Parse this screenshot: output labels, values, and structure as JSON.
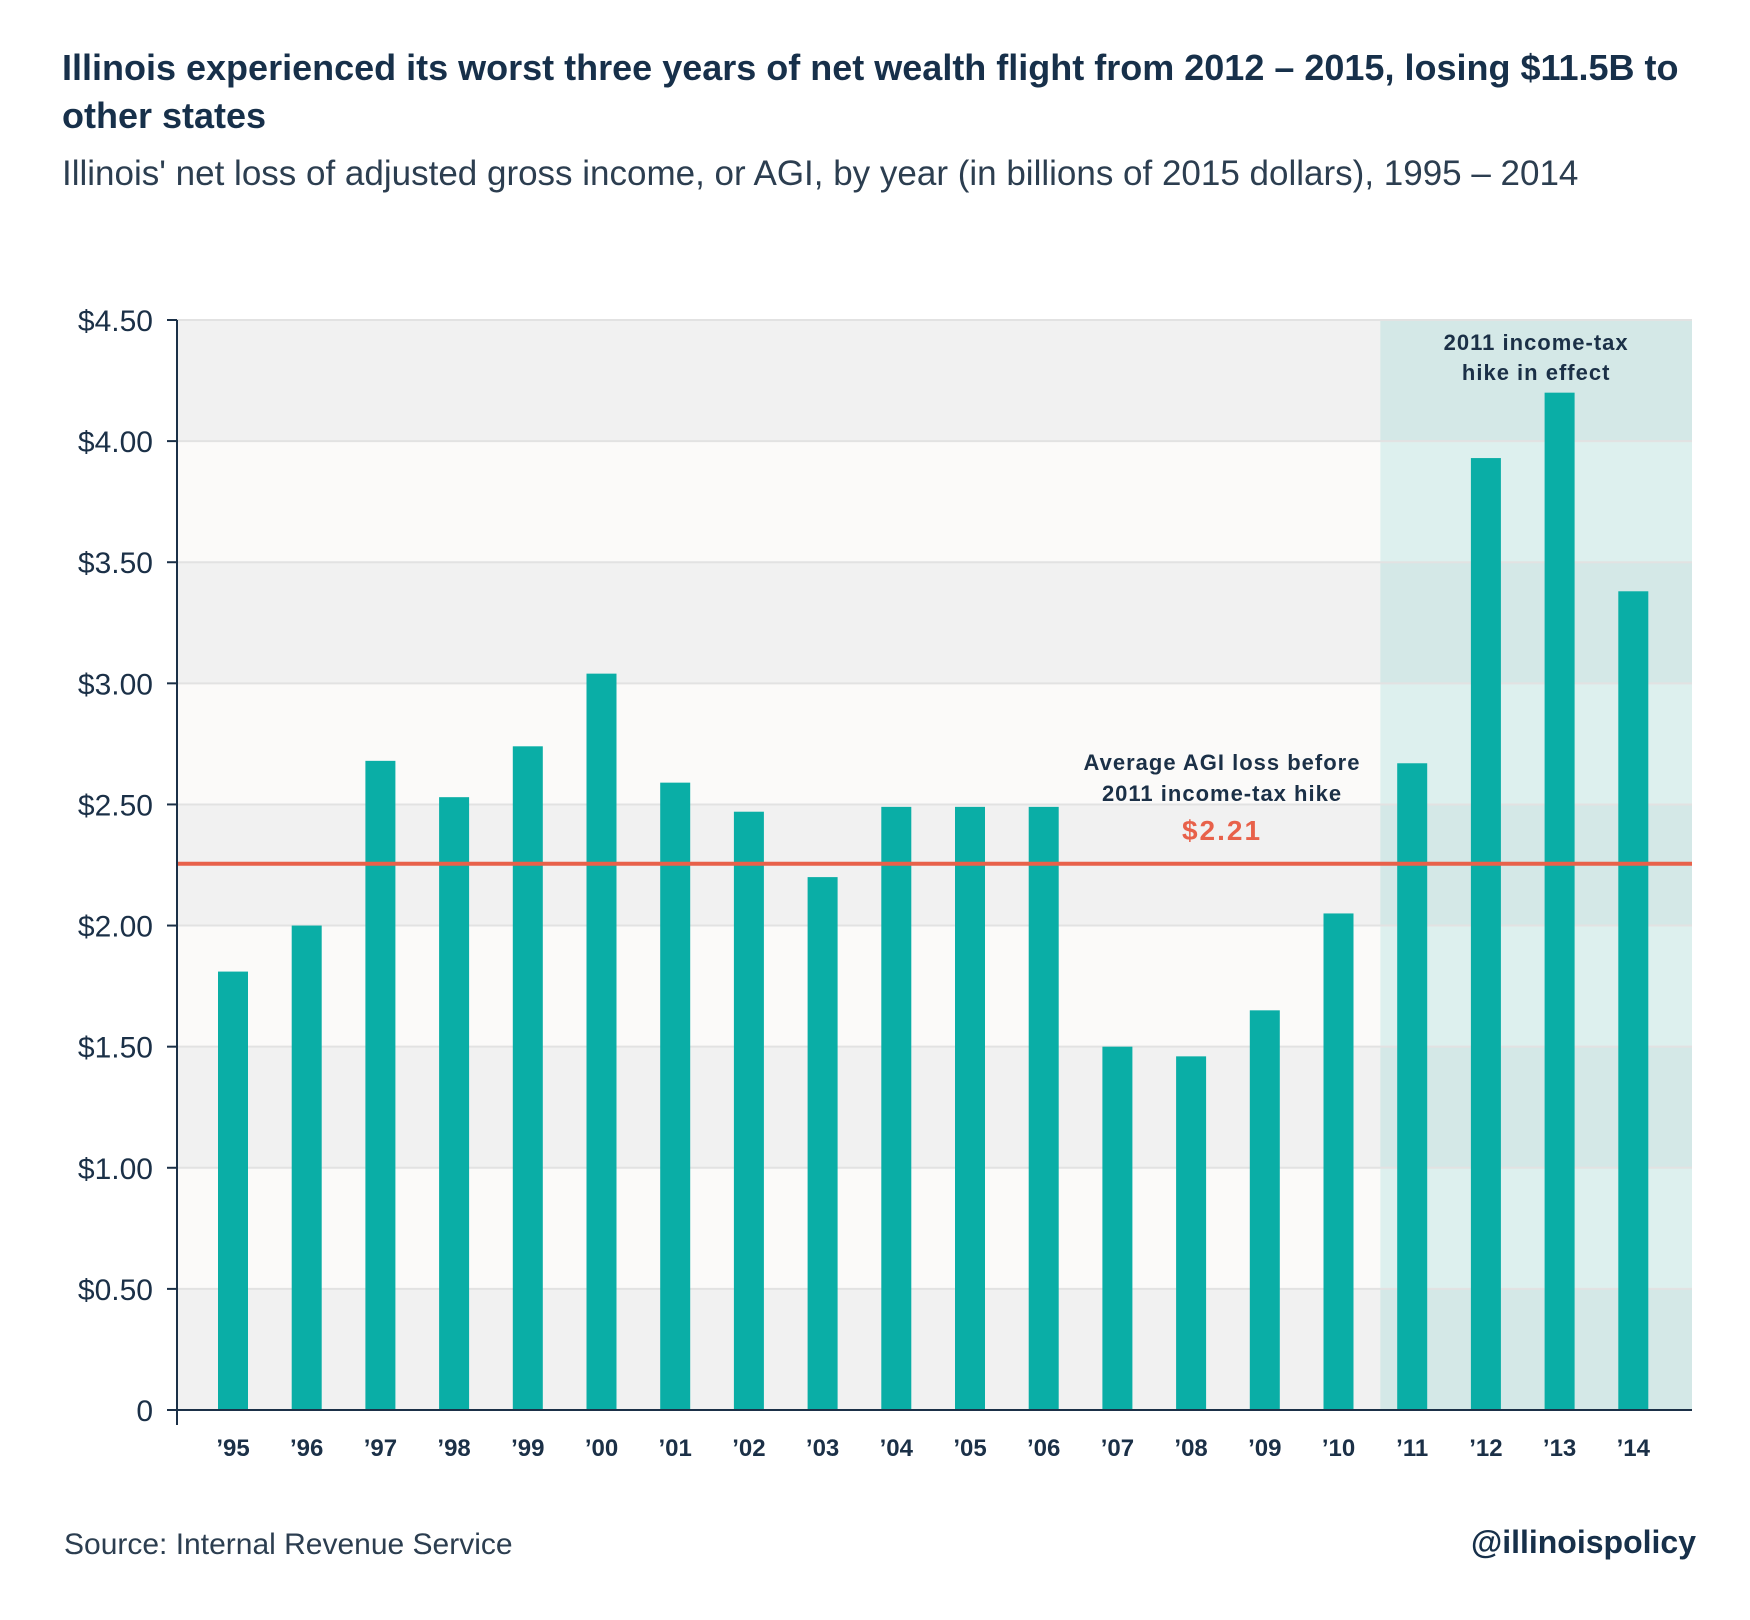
{
  "title": "Illinois experienced its worst three years of net wealth flight from 2012 – 2015, losing $11.5B to other states",
  "subtitle": "Illinois' net loss of adjusted gross income, or AGI, by year (in billions of 2015 dollars), 1995 – 2014",
  "source": "Source: Internal Revenue Service",
  "handle": "@illinoispolicy",
  "colors": {
    "bar": "#0aaea6",
    "average_line": "#e8614a",
    "highlight": "#0aaea6",
    "axis": "#1b3047",
    "band_light": "#fbfaf9",
    "band_dark": "#f1f1f1"
  },
  "chart_data": {
    "type": "bar",
    "categories": [
      "’95",
      "’96",
      "’97",
      "’98",
      "’99",
      "’00",
      "’01",
      "’02",
      "’03",
      "’04",
      "’05",
      "’06",
      "’07",
      "’08",
      "’09",
      "’10",
      "’11",
      "’12",
      "’13",
      "’14"
    ],
    "values": [
      1.81,
      2.0,
      2.68,
      2.53,
      2.74,
      3.04,
      2.59,
      2.47,
      2.2,
      2.49,
      2.49,
      2.49,
      1.5,
      1.46,
      1.65,
      2.05,
      2.67,
      3.93,
      4.2,
      3.38
    ],
    "ylim": [
      0,
      4.5
    ],
    "yticks": [
      0,
      0.5,
      1.0,
      1.5,
      2.0,
      2.5,
      3.0,
      3.5,
      4.0,
      4.5
    ],
    "ytick_labels": [
      "0",
      "$0.50",
      "$1.00",
      "$1.50",
      "$2.00",
      "$2.50",
      "$3.00",
      "$3.50",
      "$4.00",
      "$4.50"
    ],
    "reference_line": {
      "value": 2.21,
      "label_line1": "Average AGI loss before",
      "label_line2": "2011 income-tax hike",
      "value_label": "$2.21"
    },
    "highlight_region": {
      "from": "’11",
      "to": "’14",
      "label_line1": "2011 income-tax",
      "label_line2": "hike in effect"
    },
    "grid": true
  }
}
